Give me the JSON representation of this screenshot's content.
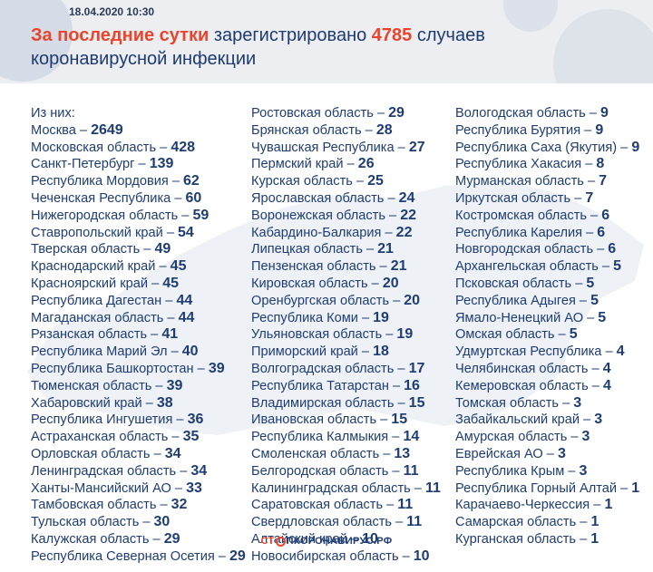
{
  "header": {
    "date": "18.04.2020 10:30",
    "title_red": "За последние сутки",
    "title_mid": " зарегистрировано ",
    "title_count": "4785",
    "title_end": " случаев",
    "title_line2": "коронавирусной инфекции"
  },
  "footer": {
    "logo_part1": "СТ",
    "logo_part2": "ПКОРОНАВИРУС.РФ"
  },
  "lists": {
    "col1": [
      {
        "name": "Из них:",
        "value": ""
      },
      {
        "name": "Москва – ",
        "value": "2649"
      },
      {
        "name": "Московская область – ",
        "value": "428"
      },
      {
        "name": "Санкт-Петербург – ",
        "value": "139"
      },
      {
        "name": "Республика Мордовия – ",
        "value": "62"
      },
      {
        "name": "Чеченская Республика – ",
        "value": "60"
      },
      {
        "name": "Нижегородская область – ",
        "value": "59"
      },
      {
        "name": "Ставропольский край – ",
        "value": "54"
      },
      {
        "name": "Тверская область – ",
        "value": "49"
      },
      {
        "name": "Краснодарский край – ",
        "value": "45"
      },
      {
        "name": "Красноярский край – ",
        "value": "45"
      },
      {
        "name": "Республика Дагестан – ",
        "value": "44"
      },
      {
        "name": "Магаданская область – ",
        "value": "44"
      },
      {
        "name": "Рязанская область – ",
        "value": "41"
      },
      {
        "name": "Республика Марий Эл – ",
        "value": "40"
      },
      {
        "name": "Республика Башкортостан – ",
        "value": "39"
      },
      {
        "name": "Тюменская область – ",
        "value": "39"
      },
      {
        "name": "Хабаровский край – ",
        "value": "38"
      },
      {
        "name": "Республика Ингушетия – ",
        "value": "36"
      },
      {
        "name": "Астраханская область – ",
        "value": "35"
      },
      {
        "name": "Орловская область – ",
        "value": "34"
      },
      {
        "name": "Ленинградская область – ",
        "value": "34"
      },
      {
        "name": "Ханты-Мансийский АО – ",
        "value": "33"
      },
      {
        "name": "Тамбовская область – ",
        "value": "32"
      },
      {
        "name": "Тульская область – ",
        "value": "30"
      },
      {
        "name": "Калужская область – ",
        "value": "29"
      },
      {
        "name": "Республика Северная Осетия – ",
        "value": "29"
      }
    ],
    "col2": [
      {
        "name": "Ростовская область – ",
        "value": "29"
      },
      {
        "name": "Брянская область – ",
        "value": "28"
      },
      {
        "name": "Чувашская Республика – ",
        "value": "27"
      },
      {
        "name": "Пермский край – ",
        "value": "26"
      },
      {
        "name": "Курская область – ",
        "value": "25"
      },
      {
        "name": "Ярославская область – ",
        "value": "24"
      },
      {
        "name": "Воронежская область – ",
        "value": "22"
      },
      {
        "name": "Кабардино-Балкария – ",
        "value": "22"
      },
      {
        "name": "Липецкая область – ",
        "value": "21"
      },
      {
        "name": "Пензенская область – ",
        "value": "21"
      },
      {
        "name": "Кировская область – ",
        "value": "20"
      },
      {
        "name": "Оренбургская область – ",
        "value": "20"
      },
      {
        "name": "Республика Коми – ",
        "value": "19"
      },
      {
        "name": "Ульяновская область – ",
        "value": "19"
      },
      {
        "name": "Приморский край – ",
        "value": "18"
      },
      {
        "name": "Волгоградская область – ",
        "value": "17"
      },
      {
        "name": "Республика Татарстан – ",
        "value": "16"
      },
      {
        "name": "Владимирская область – ",
        "value": "15"
      },
      {
        "name": "Ивановская область – ",
        "value": "15"
      },
      {
        "name": "Республика Калмыкия – ",
        "value": "14"
      },
      {
        "name": "Смоленская область – ",
        "value": "13"
      },
      {
        "name": "Белгородская область – ",
        "value": "11"
      },
      {
        "name": "Калининградская область – ",
        "value": "11"
      },
      {
        "name": "Саратовская область – ",
        "value": "11"
      },
      {
        "name": "Свердловская область – ",
        "value": "11"
      },
      {
        "name": "Алтайский край – ",
        "value": "10"
      },
      {
        "name": "Новосибирская область – ",
        "value": "10"
      }
    ],
    "col3": [
      {
        "name": "Вологодская область – ",
        "value": "9"
      },
      {
        "name": "Республика Бурятия – ",
        "value": "9"
      },
      {
        "name": "Республика Саха (Якутия) – ",
        "value": "9"
      },
      {
        "name": "Республика Хакасия – ",
        "value": "8"
      },
      {
        "name": "Мурманская область – ",
        "value": "7"
      },
      {
        "name": "Иркутская область – ",
        "value": "7"
      },
      {
        "name": "Костромская область – ",
        "value": "6"
      },
      {
        "name": "Республика Карелия – ",
        "value": "6"
      },
      {
        "name": "Новгородская область – ",
        "value": "6"
      },
      {
        "name": "Архангельская область – ",
        "value": "5"
      },
      {
        "name": "Псковская область – ",
        "value": "5"
      },
      {
        "name": "Республика Адыгея – ",
        "value": "5"
      },
      {
        "name": "Ямало-Ненецкий АО – ",
        "value": "5"
      },
      {
        "name": "Омская область – ",
        "value": "5"
      },
      {
        "name": "Удмуртская Республика – ",
        "value": "4"
      },
      {
        "name": "Челябинская область – ",
        "value": "4"
      },
      {
        "name": "Кемеровская область – ",
        "value": "4"
      },
      {
        "name": "Томская область – ",
        "value": "3"
      },
      {
        "name": "Забайкальский край – ",
        "value": "3"
      },
      {
        "name": "Амурская область – ",
        "value": "3"
      },
      {
        "name": "Еврейская АО – ",
        "value": "3"
      },
      {
        "name": "Республика Крым – ",
        "value": "3"
      },
      {
        "name": "Республика Горный Алтай – ",
        "value": "1"
      },
      {
        "name": "Карачаево-Черкессия – ",
        "value": "1"
      },
      {
        "name": "Самарская область – ",
        "value": "1"
      },
      {
        "name": "Курганская область – ",
        "value": "1"
      }
    ]
  }
}
